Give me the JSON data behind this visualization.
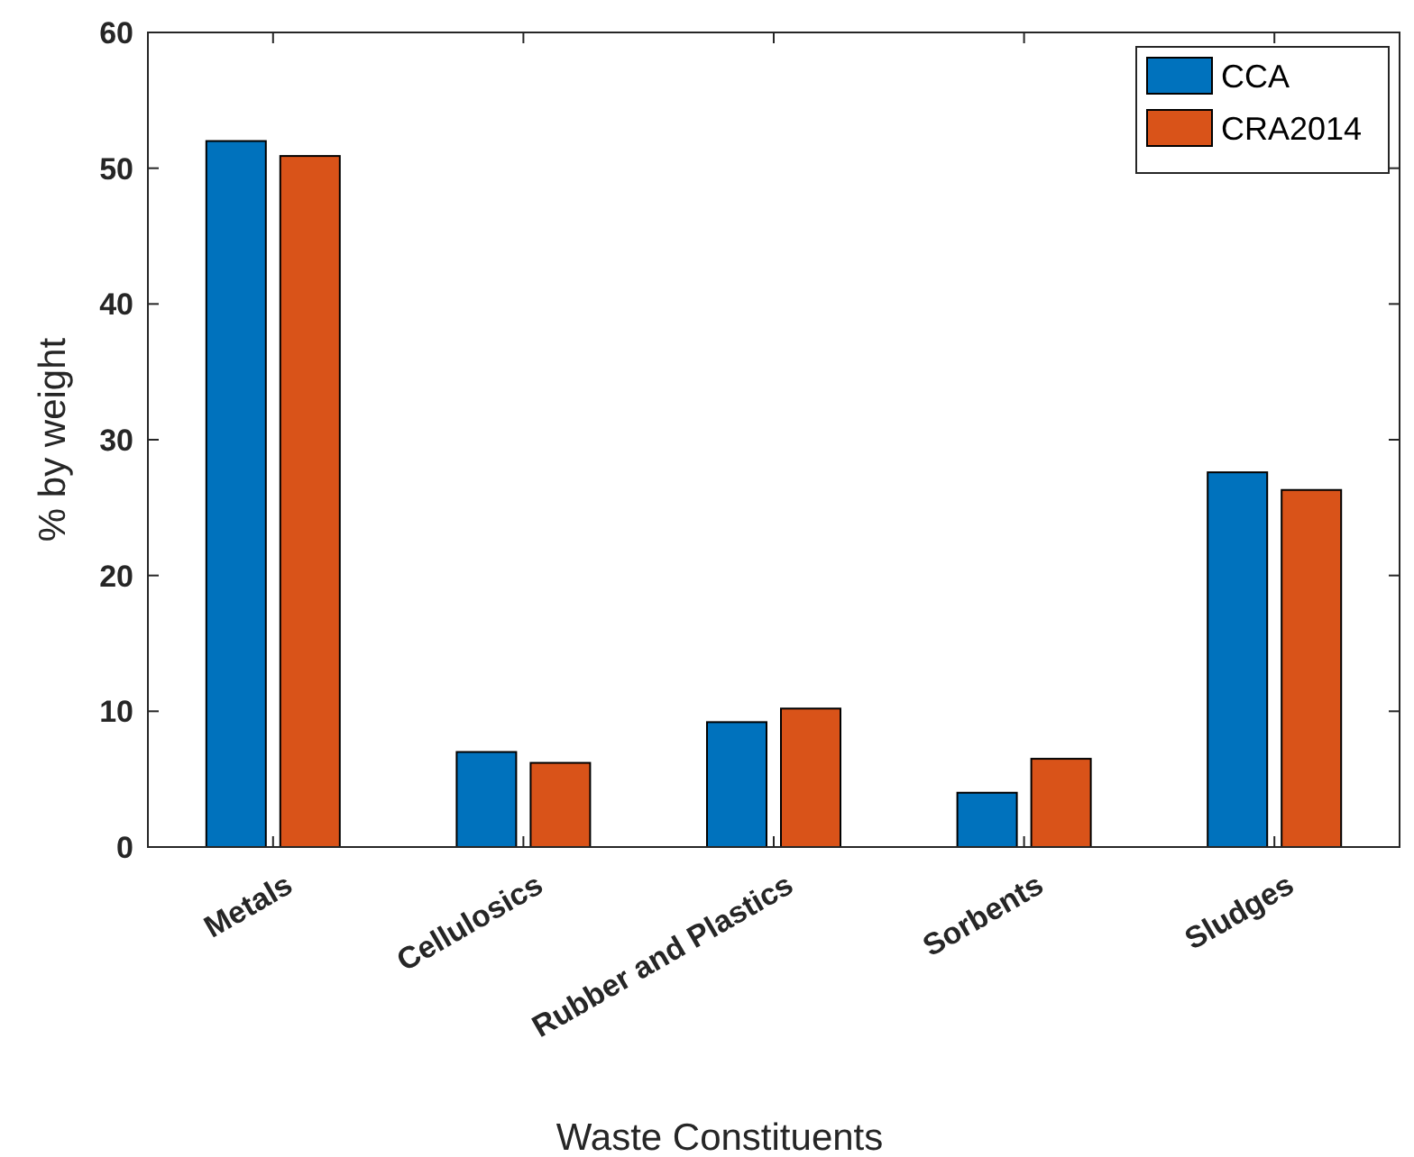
{
  "chart_data": {
    "type": "bar",
    "xlabel": "Waste Constituents",
    "ylabel": "% by weight",
    "categories": [
      "Metals",
      "Cellulosics",
      "Rubber and Plastics",
      "Sorbents",
      "Sludges"
    ],
    "series": [
      {
        "name": "CCA",
        "color": "#0072bd",
        "values": [
          52.0,
          7.0,
          9.2,
          4.0,
          27.6
        ]
      },
      {
        "name": "CRA2014",
        "color": "#d95319",
        "values": [
          50.9,
          6.2,
          10.2,
          6.5,
          26.3
        ]
      }
    ],
    "ylim": [
      0,
      60
    ],
    "yticks": [
      0,
      10,
      20,
      30,
      40,
      50,
      60
    ],
    "legend": "top right"
  }
}
